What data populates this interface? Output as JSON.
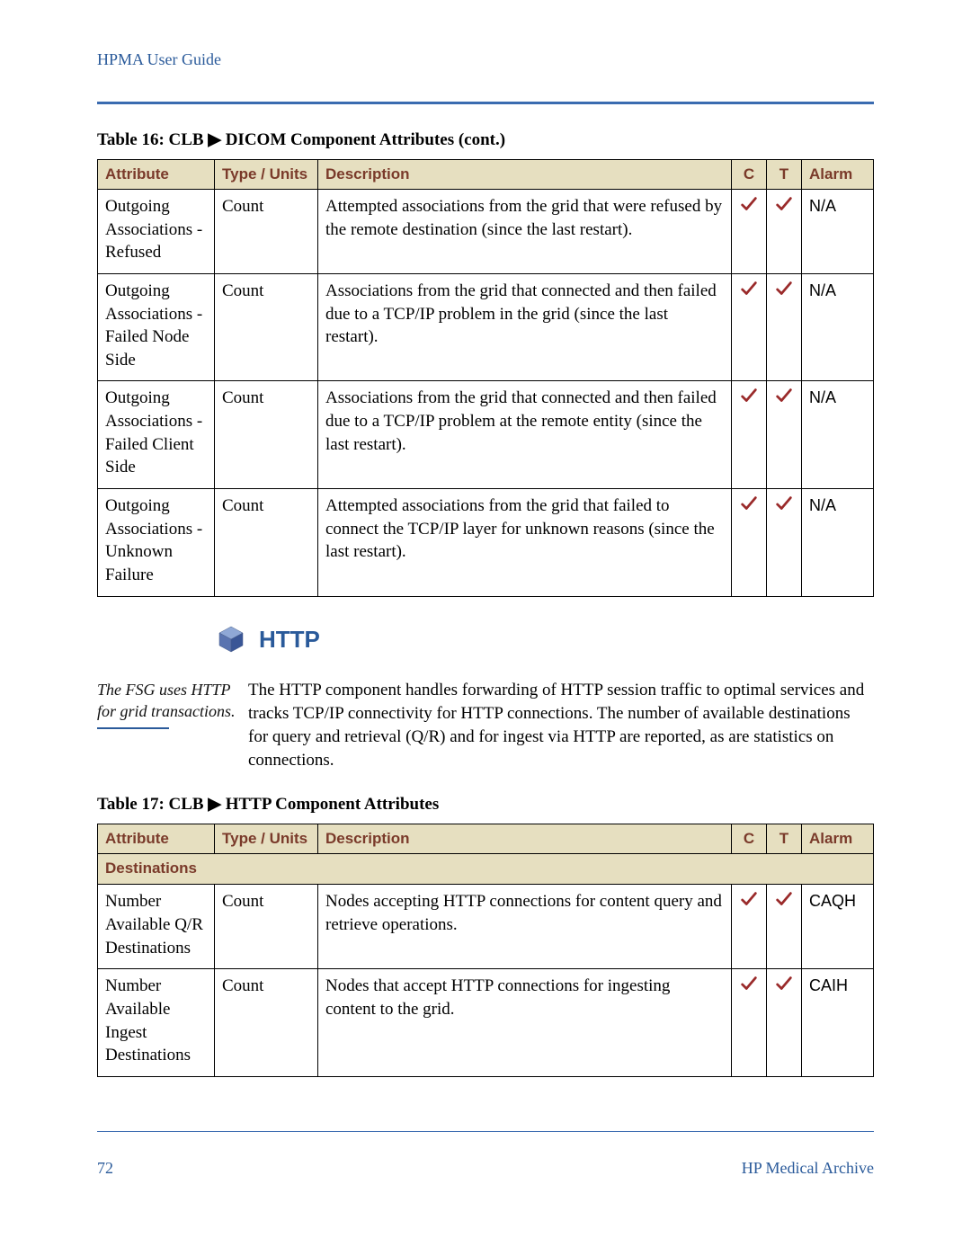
{
  "header": {
    "title": "HPMA User Guide"
  },
  "colors": {
    "accent": "#2a5a9a",
    "rule": "#3a6bb0",
    "table_header_bg": "#e6dfc0",
    "table_header_text": "#7a3a2a",
    "check": "#9a2a2a"
  },
  "table16": {
    "caption": "Table 16: CLB ▶ DICOM Component Attributes (cont.)",
    "columns": [
      "Attribute",
      "Type / Units",
      "Description",
      "C",
      "T",
      "Alarm"
    ],
    "rows": [
      {
        "attribute": "Outgoing Associations - Refused",
        "type": "Count",
        "description": "Attempted associations from the grid that were refused by the remote destination (since the last restart).",
        "c": true,
        "t": true,
        "alarm": "N/A"
      },
      {
        "attribute": "Outgoing Associations - Failed Node Side",
        "type": "Count",
        "description": "Associations from the grid that connected and then failed due to a TCP/IP problem in the grid (since the last restart).",
        "c": true,
        "t": true,
        "alarm": "N/A"
      },
      {
        "attribute": "Outgoing Associations - Failed Client Side",
        "type": "Count",
        "description": "Associations from the grid that connected and then failed due to a TCP/IP problem at the remote entity (since the last restart).",
        "c": true,
        "t": true,
        "alarm": "N/A"
      },
      {
        "attribute": "Outgoing Associations - Unknown Failure",
        "type": "Count",
        "description": "Attempted associations from the grid that failed to connect the TCP/IP layer for unknown reasons (since the last restart).",
        "c": true,
        "t": true,
        "alarm": "N/A"
      }
    ]
  },
  "http_section": {
    "title": "HTTP",
    "margin_note": "The FSG uses HTTP for grid transactions.",
    "body": "The HTTP component handles forwarding of HTTP session traffic to optimal services and tracks TCP/IP connectivity for HTTP connections. The number of available destinations for query and retrieval (Q/R) and for ingest via HTTP are reported, as are statistics on connections."
  },
  "table17": {
    "caption": "Table 17: CLB ▶ HTTP Component Attributes",
    "columns": [
      "Attribute",
      "Type / Units",
      "Description",
      "C",
      "T",
      "Alarm"
    ],
    "section": "Destinations",
    "rows": [
      {
        "attribute": "Number Available Q/R Destinations",
        "type": "Count",
        "description": "Nodes accepting HTTP connections for content query and retrieve operations.",
        "c": true,
        "t": true,
        "alarm": "CAQH"
      },
      {
        "attribute": "Number Available Ingest Destinations",
        "type": "Count",
        "description": "Nodes that accept HTTP connections for ingesting content to the grid.",
        "c": true,
        "t": true,
        "alarm": "CAIH"
      }
    ]
  },
  "footer": {
    "page": "72",
    "brand": "HP Medical Archive"
  }
}
